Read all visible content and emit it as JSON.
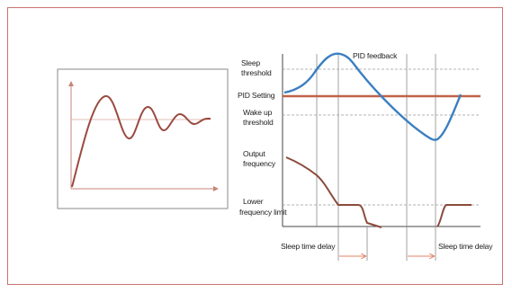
{
  "left_diagram": {},
  "right_diagram": {
    "labels": {
      "pid_feedback": "PID feedback",
      "sleep_threshold_line1": "Sleep",
      "sleep_threshold_line2": "threshold",
      "pid_setting": "PID Setting",
      "wake_up_line1": "Wake up",
      "wake_up_line2": "threshold",
      "output_line1": "Output",
      "output_line2": "frequency",
      "lower_line1": "Lower",
      "lower_line2": "frequency limit",
      "sleep_delay_left": "Sleep time delay",
      "sleep_delay_right": "Sleep time delay"
    }
  },
  "colors": {
    "frame_border": "#c9746f",
    "box_border": "#8a8a8a",
    "axis": "#444444",
    "left_curve": "#9a4a3f",
    "left_arrow": "#c5867a",
    "setpoint_line": "#c0624a",
    "feedback_curve": "#3b7fc1",
    "output_curve": "#8b4a3c",
    "dashed_line": "#9a9a9a",
    "delay_arrow": "#e3836a"
  }
}
